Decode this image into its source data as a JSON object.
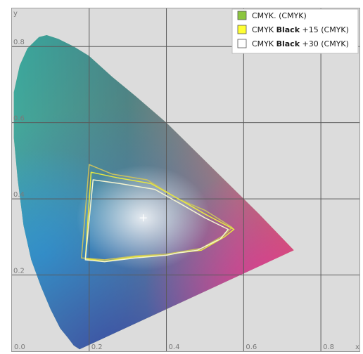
{
  "chart_data": {
    "type": "line",
    "title": "",
    "xlabel": "x",
    "ylabel": "y",
    "xlim": [
      0,
      0.9
    ],
    "ylim": [
      0,
      0.9
    ],
    "x_ticks": [
      "0.0",
      "0.2",
      "0.4",
      "0.6",
      "0.8"
    ],
    "y_ticks": [
      "0.2",
      "0.4",
      "0.6",
      "0.8"
    ],
    "grid": true,
    "legend_position": "top-right",
    "background_color": "#dcdcdc",
    "spectral_locus": [
      [
        0.175,
        0.005
      ],
      [
        0.16,
        0.015
      ],
      [
        0.145,
        0.035
      ],
      [
        0.125,
        0.06
      ],
      [
        0.1,
        0.11
      ],
      [
        0.075,
        0.17
      ],
      [
        0.05,
        0.24
      ],
      [
        0.03,
        0.33
      ],
      [
        0.015,
        0.45
      ],
      [
        0.005,
        0.56
      ],
      [
        0.005,
        0.68
      ],
      [
        0.02,
        0.75
      ],
      [
        0.04,
        0.795
      ],
      [
        0.07,
        0.825
      ],
      [
        0.09,
        0.83
      ],
      [
        0.12,
        0.82
      ],
      [
        0.16,
        0.8
      ],
      [
        0.2,
        0.775
      ],
      [
        0.26,
        0.72
      ],
      [
        0.32,
        0.67
      ],
      [
        0.4,
        0.6
      ],
      [
        0.48,
        0.52
      ],
      [
        0.56,
        0.44
      ],
      [
        0.64,
        0.36
      ],
      [
        0.73,
        0.265
      ],
      [
        0.175,
        0.005
      ]
    ],
    "white_point": [
      0.34,
      0.35
    ],
    "series": [
      {
        "name": "CMYK. (CMYK)",
        "legend_color": "#8cc63f",
        "line_color": "#c8c060",
        "points": [
          [
            0.2,
            0.49
          ],
          [
            0.26,
            0.465
          ],
          [
            0.35,
            0.45
          ],
          [
            0.43,
            0.4
          ],
          [
            0.5,
            0.37
          ],
          [
            0.57,
            0.325
          ],
          [
            0.55,
            0.305
          ],
          [
            0.49,
            0.27
          ],
          [
            0.43,
            0.26
          ],
          [
            0.4,
            0.255
          ],
          [
            0.32,
            0.25
          ],
          [
            0.24,
            0.24
          ],
          [
            0.18,
            0.245
          ],
          [
            0.2,
            0.49
          ]
        ]
      },
      {
        "name": "CMYK Black +15 (CMYK)",
        "legend_color": "#ffff33",
        "line_color": "#e8e840",
        "points": [
          [
            0.205,
            0.47
          ],
          [
            0.275,
            0.455
          ],
          [
            0.36,
            0.44
          ],
          [
            0.44,
            0.395
          ],
          [
            0.5,
            0.36
          ],
          [
            0.575,
            0.32
          ],
          [
            0.55,
            0.3
          ],
          [
            0.49,
            0.265
          ],
          [
            0.43,
            0.258
          ],
          [
            0.4,
            0.252
          ],
          [
            0.32,
            0.248
          ],
          [
            0.24,
            0.236
          ],
          [
            0.19,
            0.243
          ],
          [
            0.205,
            0.47
          ]
        ]
      },
      {
        "name": "CMYK Black +30 (CMYK)",
        "legend_color": "#ffffff",
        "line_color": "#f4f4d0",
        "points": [
          [
            0.21,
            0.45
          ],
          [
            0.28,
            0.44
          ],
          [
            0.37,
            0.425
          ],
          [
            0.44,
            0.385
          ],
          [
            0.5,
            0.35
          ],
          [
            0.56,
            0.32
          ],
          [
            0.54,
            0.295
          ],
          [
            0.48,
            0.265
          ],
          [
            0.43,
            0.258
          ],
          [
            0.4,
            0.252
          ],
          [
            0.32,
            0.245
          ],
          [
            0.24,
            0.235
          ],
          [
            0.19,
            0.24
          ],
          [
            0.21,
            0.45
          ]
        ]
      }
    ]
  }
}
